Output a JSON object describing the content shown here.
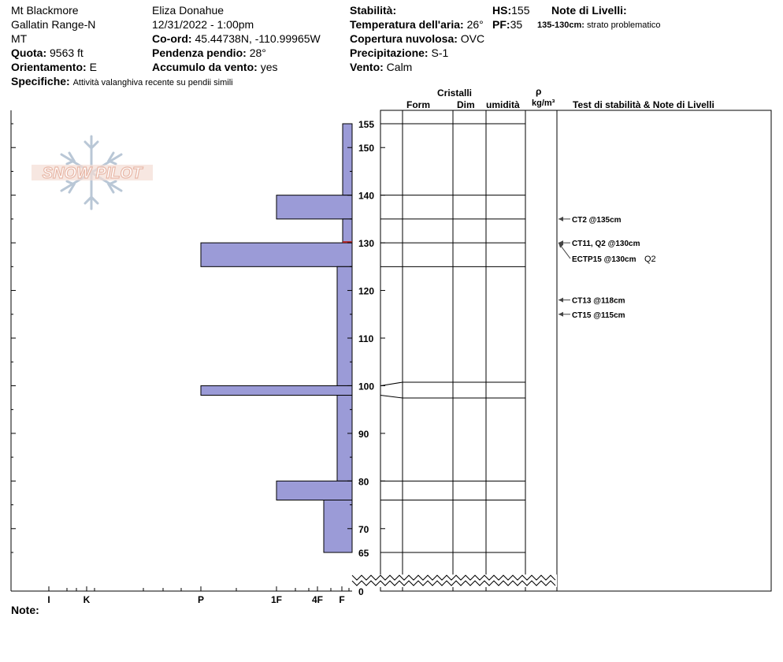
{
  "site": {
    "name": "Mt Blackmore",
    "range": "Gallatin Range-N",
    "state": "MT",
    "elevation_label": "Quota:",
    "elevation_value": "9563 ft",
    "aspect_label": "Orientamento:",
    "aspect_value": "E",
    "specifics_label": "Specifiche:",
    "specifics_value": "Attività valanghiva recente su pendii simili"
  },
  "observer": {
    "name": "Eliza Donahue",
    "datetime": "12/31/2022 - 1:00pm",
    "coord_label": "Co-ord:",
    "coord_value": "45.44738N, -110.99965W",
    "slope_label": "Pendenza pendio:",
    "slope_value": "28°",
    "wind_loading_label": "Accumulo da vento:",
    "wind_loading_value": "yes"
  },
  "conditions": {
    "stability_label": "Stabilità:",
    "stability_value": "",
    "air_temp_label": "Temperatura dell'aria:",
    "air_temp_value": "26°",
    "cloud_label": "Copertura nuvolosa:",
    "cloud_value": "OVC",
    "precip_label": "Precipitazione:",
    "precip_value": "S-1",
    "wind_label": "Vento:",
    "wind_value": "Calm",
    "hs_label": "HS:",
    "hs_value": "155",
    "pf_label": "PF:",
    "pf_value": "35"
  },
  "layer_notes": {
    "label": "Note di Livelli:",
    "items": [
      {
        "depth": "135-130cm:",
        "text": "strato problematico"
      }
    ]
  },
  "logo": {
    "text": "SNOW PILOT",
    "color": "#e8b8a8"
  },
  "columns": {
    "crystals": "Cristalli",
    "form": "Form",
    "size": "Dim",
    "moisture": "umidità",
    "density_symbol": "ρ",
    "density_unit": "kg/m³",
    "tests": "Test di stabilità & Note di Livelli"
  },
  "note_label": "Note:",
  "colors": {
    "hardness_fill": "#9b9bd7",
    "hardness_stroke": "#000000",
    "marker": "#b02020"
  },
  "chart_data": {
    "type": "bar",
    "title": "",
    "xlabel": "",
    "ylabel": "",
    "hardness_scale": [
      "I",
      "K",
      "P",
      "1F",
      "4F",
      "F"
    ],
    "ylim": [
      0,
      155
    ],
    "y_ticks": [
      0,
      65,
      70,
      80,
      90,
      100,
      110,
      120,
      130,
      140,
      150,
      155
    ],
    "layers": [
      {
        "top": 155,
        "bottom": 140,
        "hardness": "F"
      },
      {
        "top": 140,
        "bottom": 135,
        "hardness": "1F"
      },
      {
        "top": 135,
        "bottom": 130,
        "hardness": "F"
      },
      {
        "top": 130,
        "bottom": 125,
        "hardness": "P"
      },
      {
        "top": 125,
        "bottom": 100,
        "hardness": "F+"
      },
      {
        "top": 100,
        "bottom": 98,
        "hardness": "P"
      },
      {
        "top": 98,
        "bottom": 80,
        "hardness": "F+"
      },
      {
        "top": 80,
        "bottom": 76,
        "hardness": "1F"
      },
      {
        "top": 76,
        "bottom": 65,
        "hardness": "4F"
      }
    ],
    "layer_boundaries": [
      155,
      140,
      135,
      130,
      125,
      100,
      98,
      80,
      76,
      65
    ],
    "tests": [
      {
        "text": "CT2 @135cm",
        "depth": 135
      },
      {
        "text": "CT11, Q2 @130cm",
        "depth": 130
      },
      {
        "text": "ECTP15 @130cm",
        "extra": "Q2",
        "depth": 130
      },
      {
        "text": "CT13 @118cm",
        "depth": 118
      },
      {
        "text": "CT15 @115cm",
        "depth": 115
      }
    ]
  }
}
